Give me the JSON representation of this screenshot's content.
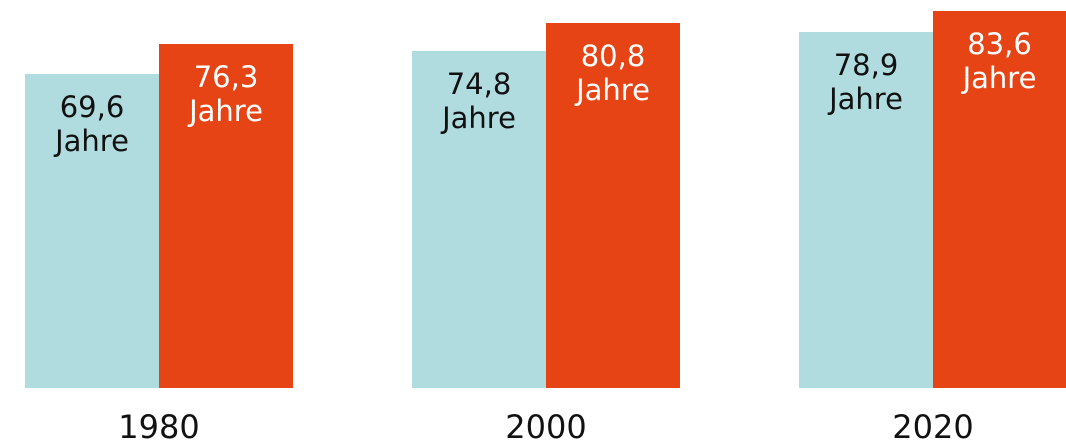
{
  "chart_data": {
    "type": "bar",
    "categories": [
      "1980",
      "2000",
      "2020"
    ],
    "series": [
      {
        "color": "#b0dce0",
        "label_color": "#111111",
        "values": [
          69.6,
          74.8,
          78.9
        ],
        "value_labels": [
          "69,6 Jahre",
          "74,8 Jahre",
          "78,9 Jahre"
        ]
      },
      {
        "color": "#e64415",
        "label_color": "#ffffff",
        "values": [
          76.3,
          80.8,
          83.6
        ],
        "value_labels": [
          "76,3 Jahre",
          "80,8 Jahre",
          "83,6 Jahre"
        ]
      }
    ],
    "ylim": [
      0,
      86
    ]
  }
}
